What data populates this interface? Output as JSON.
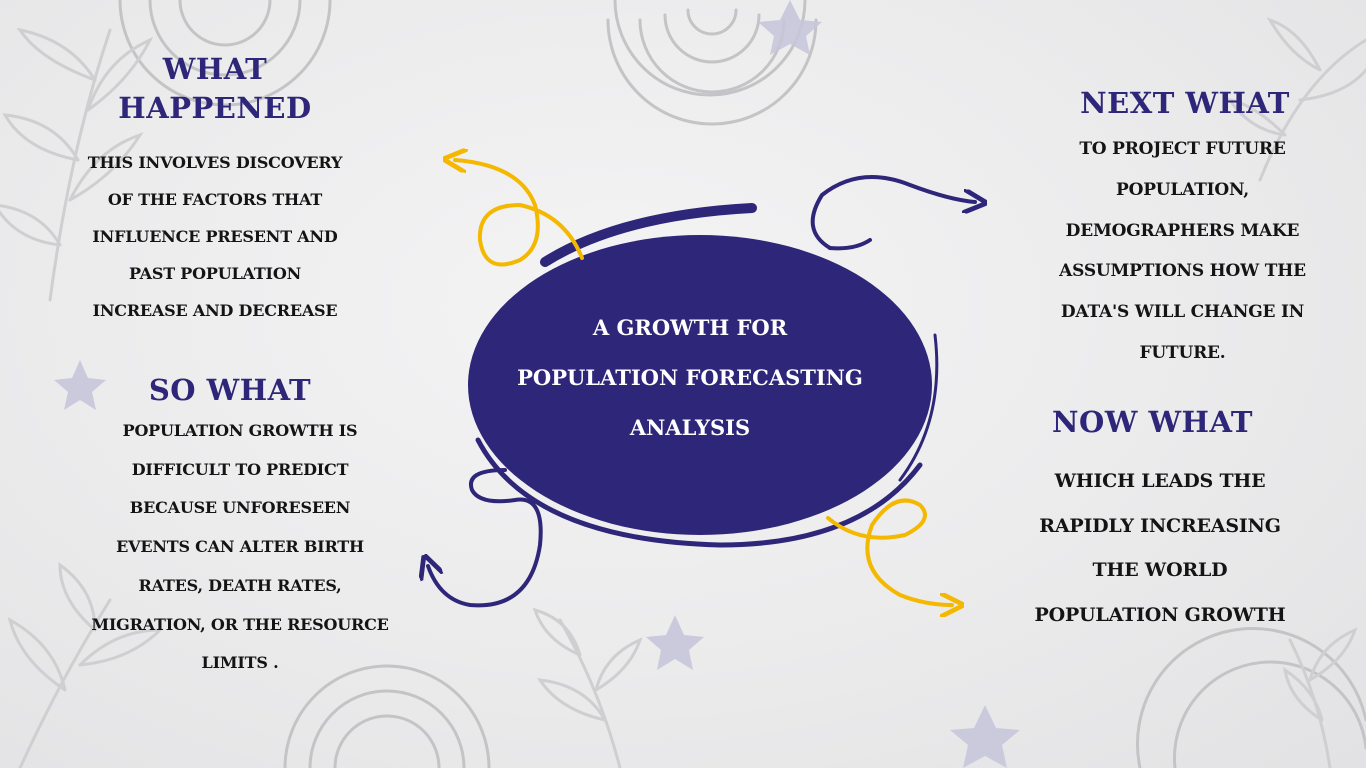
{
  "colors": {
    "heading": "#2e2678",
    "ellipse": "#2e2678",
    "arrow_yellow": "#f5b800",
    "text": "#141414",
    "center_text": "#ffffff"
  },
  "center_title": {
    "lines": [
      "A GROWTH FOR",
      "POPULATION FORECASTING",
      "ANALYSIS"
    ]
  },
  "what_happened": {
    "title_lines": [
      "WHAT",
      "HAPPENED"
    ],
    "body_lines": [
      "THIS INVOLVES DISCOVERY",
      "OF THE FACTORS THAT",
      "INFLUENCE PRESENT AND",
      "PAST POPULATION",
      "INCREASE AND DECREASE"
    ]
  },
  "so_what": {
    "title": "SO WHAT",
    "body_lines": [
      "POPULATION GROWTH IS",
      "DIFFICULT TO PREDICT",
      "BECAUSE UNFORESEEN",
      "EVENTS CAN ALTER BIRTH",
      "RATES, DEATH RATES,",
      "MIGRATION, OR THE RESOURCE",
      "LIMITS ."
    ]
  },
  "next_what": {
    "title": "NEXT WHAT",
    "body_lines": [
      "TO PROJECT FUTURE",
      "POPULATION,",
      "DEMOGRAPHERS MAKE",
      "ASSUMPTIONS  HOW THE",
      "DATA'S WILL CHANGE IN",
      "FUTURE."
    ]
  },
  "now_what": {
    "title": "NOW WHAT",
    "body_lines": [
      "WHICH LEADS THE",
      "RAPIDLY INCREASING",
      "THE WORLD",
      "POPULATION GROWTH"
    ]
  }
}
